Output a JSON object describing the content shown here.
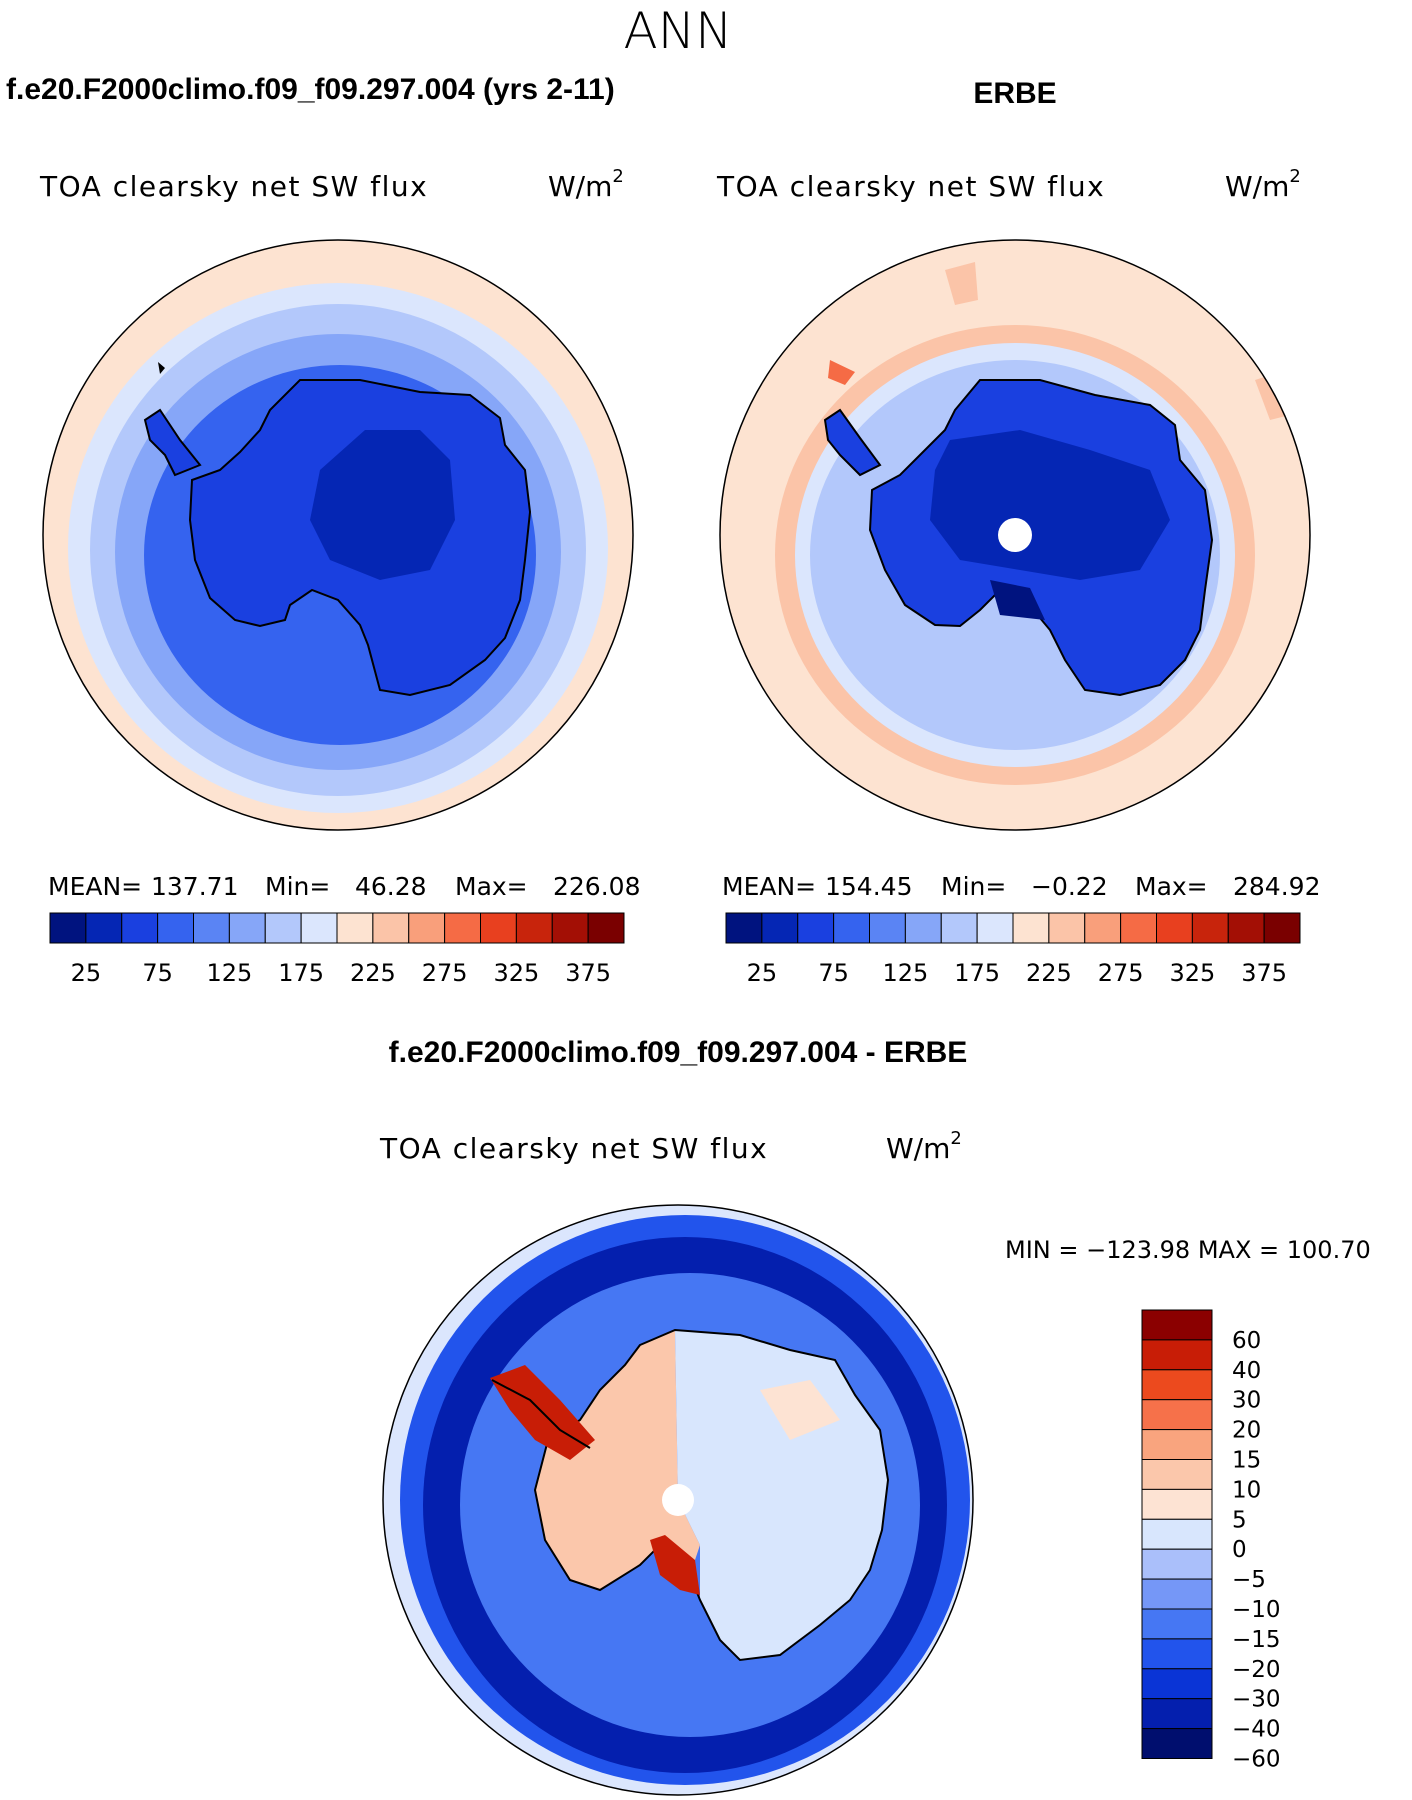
{
  "season": "ANN",
  "panels": [
    {
      "heading": "f.e20.F2000climo.f09_f09.297.004 (yrs 2-11)",
      "variable": "TOA clearsky net SW flux",
      "units": "W/m",
      "units_sup": "2",
      "stats": {
        "mean_label": "MEAN=",
        "mean": "137.71",
        "min_label": "Min=",
        "min": "46.28",
        "max_label": "Max=",
        "max": "226.08"
      },
      "colorbar_ticks": [
        "25",
        "75",
        "125",
        "175",
        "225",
        "275",
        "325",
        "375"
      ]
    },
    {
      "heading": "ERBE",
      "variable": "TOA clearsky net SW flux",
      "units": "W/m",
      "units_sup": "2",
      "stats": {
        "mean_label": "MEAN=",
        "mean": "154.45",
        "min_label": "Min=",
        "min": "−0.22",
        "max_label": "Max=",
        "max": "284.92"
      },
      "colorbar_ticks": [
        "25",
        "75",
        "125",
        "175",
        "225",
        "275",
        "325",
        "375"
      ]
    }
  ],
  "difference": {
    "heading": "f.e20.F2000climo.f09_f09.297.004 - ERBE",
    "variable": "TOA clearsky net SW flux",
    "units": "W/m",
    "units_sup": "2",
    "minmax": "MIN = −123.98 MAX = 100.70",
    "colorbar_labels": [
      "60",
      "40",
      "30",
      "20",
      "15",
      "10",
      "5",
      "0",
      "−5",
      "−10",
      "−15",
      "−20",
      "−30",
      "−40",
      "−60"
    ]
  },
  "colors": {
    "abs_scale": [
      "#00137f",
      "#0526b4",
      "#1a40e0",
      "#3563ef",
      "#5a84f4",
      "#86a6f8",
      "#b3c8fb",
      "#dbe6fd",
      "#fde3d1",
      "#fbc4a8",
      "#f99f7b",
      "#f56b45",
      "#e8401f",
      "#c8240c",
      "#a30f05",
      "#7a0000"
    ],
    "diff_scale": [
      "#000e6e",
      "#041fae",
      "#0a34d6",
      "#2254ec",
      "#4677f3",
      "#7597f7",
      "#aabffa",
      "#d8e6fd",
      "#fde3d3",
      "#fbc7ab",
      "#f9a47e",
      "#f6714a",
      "#ec4a1e",
      "#c81d06",
      "#8b0000"
    ],
    "coastline": "#000000",
    "land_mask": "#ffffff"
  }
}
